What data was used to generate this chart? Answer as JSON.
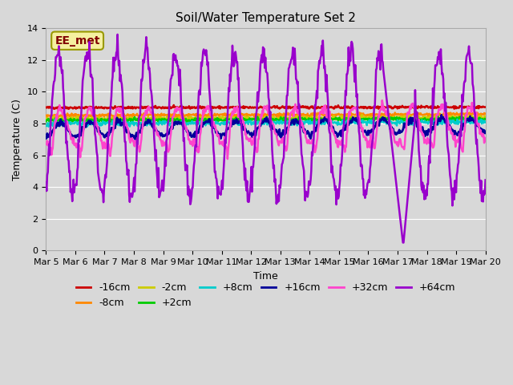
{
  "title": "Soil/Water Temperature Set 2",
  "xlabel": "Time",
  "ylabel": "Temperature (C)",
  "ylim": [
    0,
    14
  ],
  "yticks": [
    0,
    2,
    4,
    6,
    8,
    10,
    12,
    14
  ],
  "date_labels": [
    "Mar 5",
    "Mar 6",
    "Mar 7",
    "Mar 8",
    "Mar 9",
    "Mar 10",
    "Mar 11",
    "Mar 12",
    "Mar 13",
    "Mar 14",
    "Mar 15",
    "Mar 16",
    "Mar 17",
    "Mar 18",
    "Mar 19",
    "Mar 20"
  ],
  "annotation_text": "EE_met",
  "annotation_box_color": "#f5f0a0",
  "annotation_text_color": "#800000",
  "series": [
    {
      "label": "-16cm",
      "color": "#cc0000"
    },
    {
      "label": "-8cm",
      "color": "#ff8800"
    },
    {
      "label": "-2cm",
      "color": "#cccc00"
    },
    {
      "label": "+2cm",
      "color": "#00cc00"
    },
    {
      "label": "+8cm",
      "color": "#00cccc"
    },
    {
      "label": "+16cm",
      "color": "#000099"
    },
    {
      "label": "+32cm",
      "color": "#ff44cc"
    },
    {
      "label": "+64cm",
      "color": "#9900cc"
    }
  ]
}
